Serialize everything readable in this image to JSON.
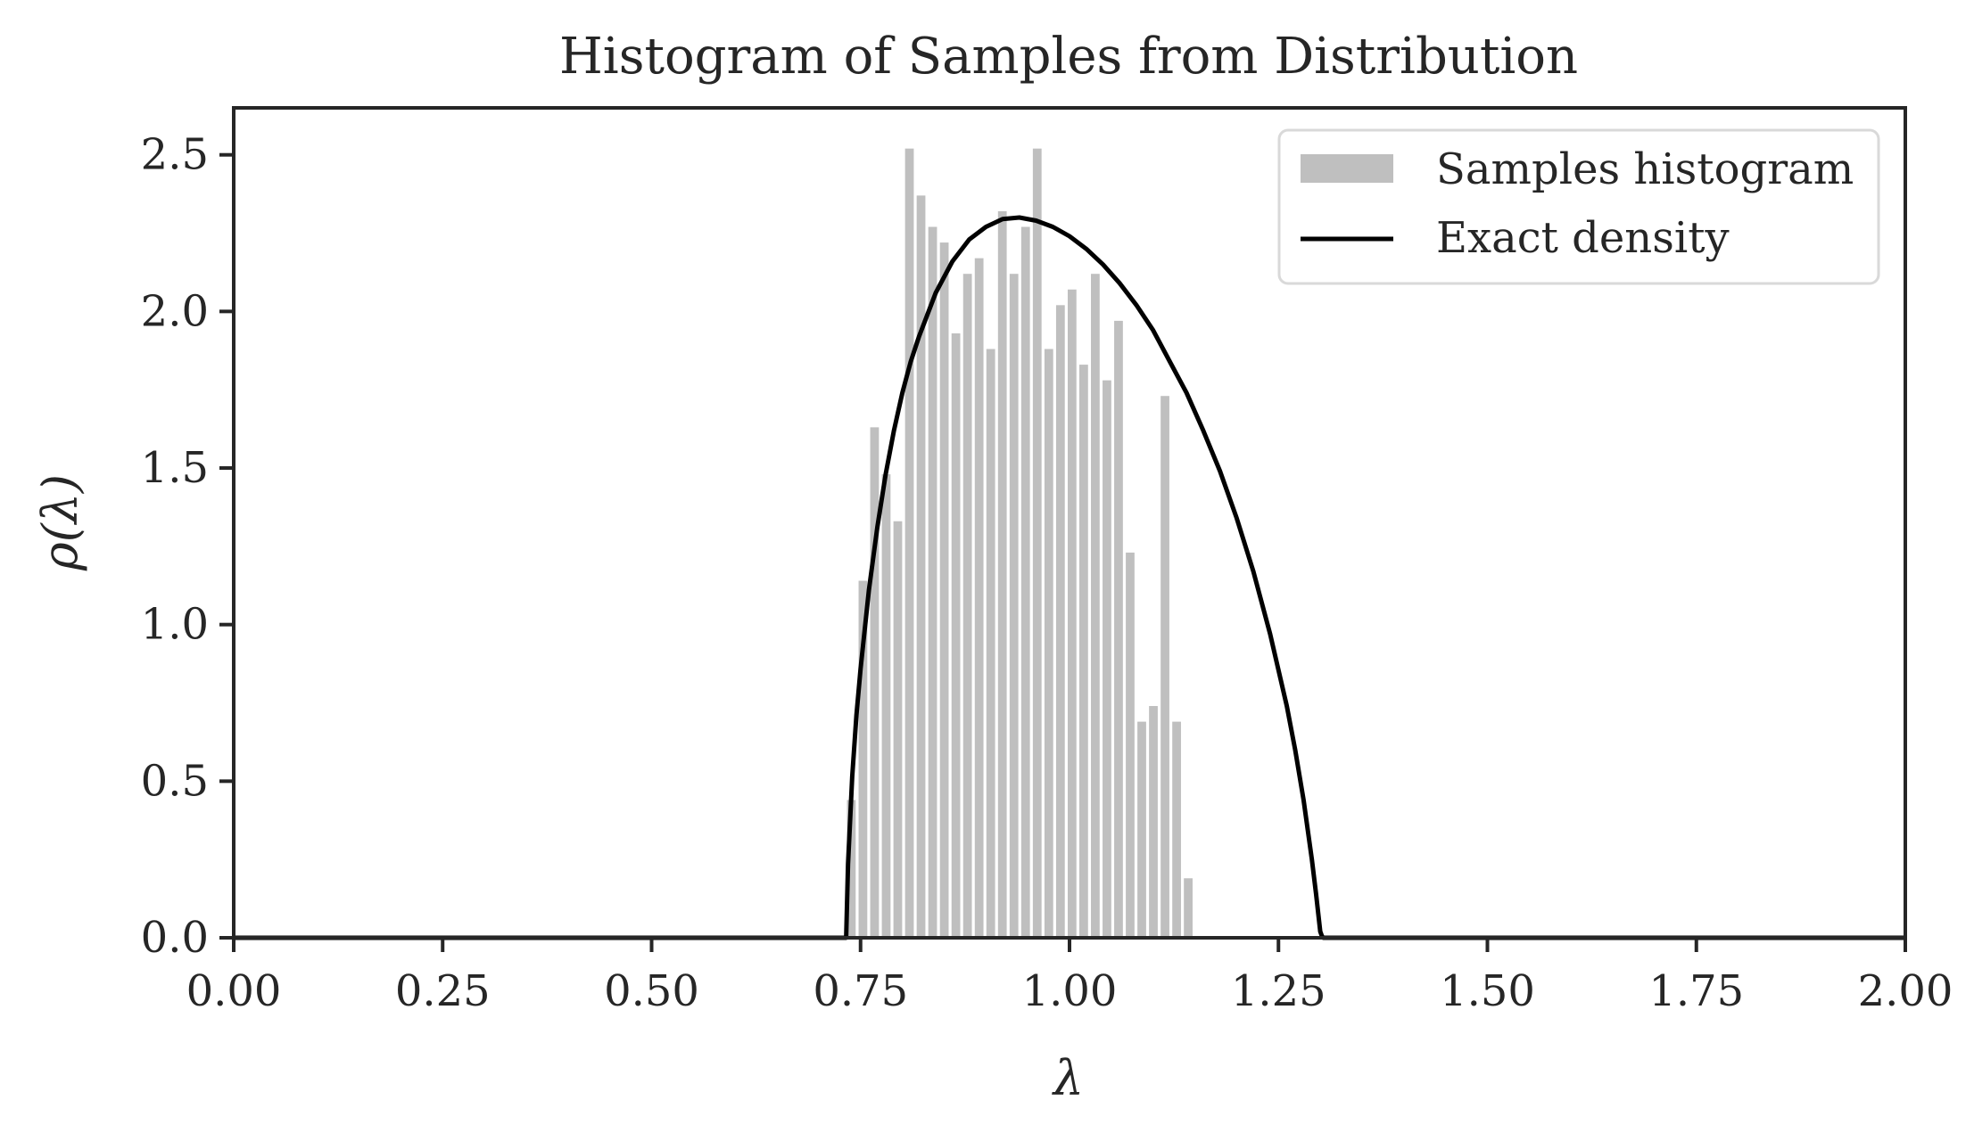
{
  "chart_data": {
    "type": "bar",
    "title": "Histogram of Samples from Distribution",
    "xlabel": "λ",
    "ylabel": "ρ(λ)",
    "xlim": [
      0.0,
      2.0
    ],
    "ylim": [
      0.0,
      2.65
    ],
    "x_ticks": [
      "0.00",
      "0.25",
      "0.50",
      "0.75",
      "1.00",
      "1.25",
      "1.50",
      "1.75",
      "2.00"
    ],
    "y_ticks": [
      "0.0",
      "0.5",
      "1.0",
      "1.5",
      "2.0",
      "2.5"
    ],
    "grid": false,
    "legend_placement": "top-right",
    "series": [
      {
        "name": "Samples histogram",
        "kind": "histogram",
        "color": "#bfbfbf",
        "bin_width": 0.0139,
        "bin_start": 0.732,
        "values": [
          0.44,
          1.14,
          1.63,
          1.48,
          1.33,
          2.52,
          2.37,
          2.27,
          2.22,
          1.93,
          2.12,
          2.17,
          1.88,
          2.32,
          2.12,
          2.27,
          2.52,
          1.88,
          2.02,
          2.07,
          1.83,
          2.12,
          1.78,
          1.97,
          1.23,
          0.69,
          0.74,
          1.73,
          0.69,
          0.19
        ]
      },
      {
        "name": "Exact density",
        "kind": "line",
        "color": "#000000",
        "x": [
          0.7328,
          0.735,
          0.74,
          0.745,
          0.75,
          0.76,
          0.77,
          0.78,
          0.79,
          0.8,
          0.81,
          0.82,
          0.84,
          0.86,
          0.88,
          0.9,
          0.92,
          0.94,
          0.96,
          0.98,
          1.0,
          1.02,
          1.04,
          1.06,
          1.08,
          1.1,
          1.12,
          1.14,
          1.16,
          1.18,
          1.2,
          1.22,
          1.24,
          1.26,
          1.27,
          1.28,
          1.29,
          1.295,
          1.3,
          1.302,
          1.3036
        ],
        "y": [
          0.0,
          0.235,
          0.515,
          0.71,
          0.86,
          1.11,
          1.31,
          1.48,
          1.62,
          1.74,
          1.84,
          1.92,
          2.06,
          2.16,
          2.23,
          2.27,
          2.295,
          2.3,
          2.29,
          2.27,
          2.24,
          2.2,
          2.15,
          2.09,
          2.02,
          1.94,
          1.84,
          1.74,
          1.62,
          1.49,
          1.34,
          1.17,
          0.97,
          0.74,
          0.6,
          0.44,
          0.25,
          0.14,
          0.02,
          0.005,
          0.0
        ]
      }
    ]
  }
}
